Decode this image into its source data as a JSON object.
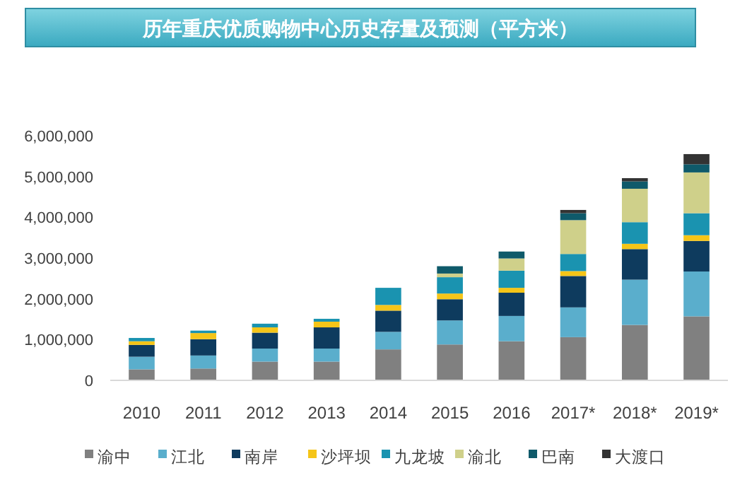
{
  "chart_data": {
    "type": "bar",
    "stacked": true,
    "title": "历年重庆优质购物中心历史存量及预测（平方米）",
    "categories": [
      "2010",
      "2011",
      "2012",
      "2013",
      "2014",
      "2015",
      "2016",
      "2017*",
      "2018*",
      "2019*"
    ],
    "series": [
      {
        "name": "渝中",
        "color": "#808080",
        "values": [
          270000,
          290000,
          460000,
          460000,
          760000,
          880000,
          960000,
          1060000,
          1360000,
          1570000
        ]
      },
      {
        "name": "江北",
        "color": "#5aaecc",
        "values": [
          310000,
          320000,
          320000,
          320000,
          430000,
          590000,
          620000,
          730000,
          1110000,
          1100000
        ]
      },
      {
        "name": "南岸",
        "color": "#0e3b5e",
        "values": [
          290000,
          400000,
          390000,
          520000,
          520000,
          520000,
          570000,
          770000,
          750000,
          750000
        ]
      },
      {
        "name": "沙坪坝",
        "color": "#f5c518",
        "values": [
          90000,
          150000,
          130000,
          140000,
          140000,
          140000,
          120000,
          120000,
          130000,
          140000
        ]
      },
      {
        "name": "九龙坡",
        "color": "#1a93b0",
        "values": [
          80000,
          60000,
          90000,
          70000,
          420000,
          400000,
          420000,
          420000,
          530000,
          540000
        ]
      },
      {
        "name": "渝北",
        "color": "#cfd08a",
        "values": [
          0,
          0,
          0,
          0,
          0,
          90000,
          300000,
          830000,
          820000,
          1000000
        ]
      },
      {
        "name": "巴南",
        "color": "#0f5a6a",
        "values": [
          0,
          0,
          0,
          0,
          0,
          180000,
          170000,
          170000,
          180000,
          200000
        ]
      },
      {
        "name": "大渡口",
        "color": "#333333",
        "values": [
          0,
          0,
          0,
          0,
          0,
          0,
          0,
          80000,
          80000,
          250000
        ]
      }
    ],
    "ylim": [
      0,
      6000000
    ],
    "yticks": [
      {
        "value": 0,
        "label": "0"
      },
      {
        "value": 1000000,
        "label": "1,000,000"
      },
      {
        "value": 2000000,
        "label": "2,000,000"
      },
      {
        "value": 3000000,
        "label": "3,000,000"
      },
      {
        "value": 4000000,
        "label": "4,000,000"
      },
      {
        "value": 5000000,
        "label": "5,000,000"
      },
      {
        "value": 6000000,
        "label": "6,000,000"
      }
    ],
    "grid": false,
    "legend": "bottom"
  }
}
